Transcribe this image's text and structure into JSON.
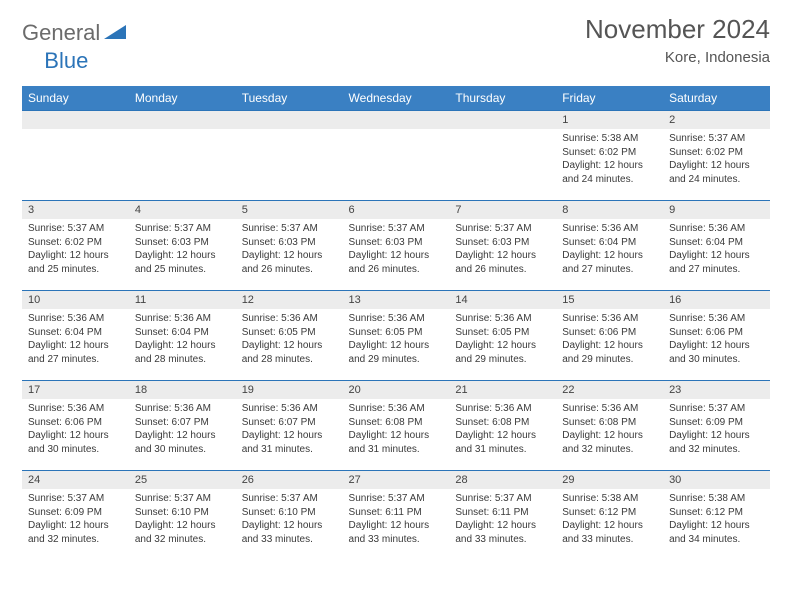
{
  "logo": {
    "text1": "General",
    "text2": "Blue"
  },
  "title": "November 2024",
  "location": "Kore, Indonesia",
  "header_bg": "#3a80c3",
  "daynum_bg": "#ececec",
  "border_color": "#2b74b8",
  "day_names": [
    "Sunday",
    "Monday",
    "Tuesday",
    "Wednesday",
    "Thursday",
    "Friday",
    "Saturday"
  ],
  "weeks": [
    [
      {
        "n": "",
        "sunrise": "",
        "sunset": "",
        "daylight": ""
      },
      {
        "n": "",
        "sunrise": "",
        "sunset": "",
        "daylight": ""
      },
      {
        "n": "",
        "sunrise": "",
        "sunset": "",
        "daylight": ""
      },
      {
        "n": "",
        "sunrise": "",
        "sunset": "",
        "daylight": ""
      },
      {
        "n": "",
        "sunrise": "",
        "sunset": "",
        "daylight": ""
      },
      {
        "n": "1",
        "sunrise": "5:38 AM",
        "sunset": "6:02 PM",
        "daylight": "12 hours and 24 minutes."
      },
      {
        "n": "2",
        "sunrise": "5:37 AM",
        "sunset": "6:02 PM",
        "daylight": "12 hours and 24 minutes."
      }
    ],
    [
      {
        "n": "3",
        "sunrise": "5:37 AM",
        "sunset": "6:02 PM",
        "daylight": "12 hours and 25 minutes."
      },
      {
        "n": "4",
        "sunrise": "5:37 AM",
        "sunset": "6:03 PM",
        "daylight": "12 hours and 25 minutes."
      },
      {
        "n": "5",
        "sunrise": "5:37 AM",
        "sunset": "6:03 PM",
        "daylight": "12 hours and 26 minutes."
      },
      {
        "n": "6",
        "sunrise": "5:37 AM",
        "sunset": "6:03 PM",
        "daylight": "12 hours and 26 minutes."
      },
      {
        "n": "7",
        "sunrise": "5:37 AM",
        "sunset": "6:03 PM",
        "daylight": "12 hours and 26 minutes."
      },
      {
        "n": "8",
        "sunrise": "5:36 AM",
        "sunset": "6:04 PM",
        "daylight": "12 hours and 27 minutes."
      },
      {
        "n": "9",
        "sunrise": "5:36 AM",
        "sunset": "6:04 PM",
        "daylight": "12 hours and 27 minutes."
      }
    ],
    [
      {
        "n": "10",
        "sunrise": "5:36 AM",
        "sunset": "6:04 PM",
        "daylight": "12 hours and 27 minutes."
      },
      {
        "n": "11",
        "sunrise": "5:36 AM",
        "sunset": "6:04 PM",
        "daylight": "12 hours and 28 minutes."
      },
      {
        "n": "12",
        "sunrise": "5:36 AM",
        "sunset": "6:05 PM",
        "daylight": "12 hours and 28 minutes."
      },
      {
        "n": "13",
        "sunrise": "5:36 AM",
        "sunset": "6:05 PM",
        "daylight": "12 hours and 29 minutes."
      },
      {
        "n": "14",
        "sunrise": "5:36 AM",
        "sunset": "6:05 PM",
        "daylight": "12 hours and 29 minutes."
      },
      {
        "n": "15",
        "sunrise": "5:36 AM",
        "sunset": "6:06 PM",
        "daylight": "12 hours and 29 minutes."
      },
      {
        "n": "16",
        "sunrise": "5:36 AM",
        "sunset": "6:06 PM",
        "daylight": "12 hours and 30 minutes."
      }
    ],
    [
      {
        "n": "17",
        "sunrise": "5:36 AM",
        "sunset": "6:06 PM",
        "daylight": "12 hours and 30 minutes."
      },
      {
        "n": "18",
        "sunrise": "5:36 AM",
        "sunset": "6:07 PM",
        "daylight": "12 hours and 30 minutes."
      },
      {
        "n": "19",
        "sunrise": "5:36 AM",
        "sunset": "6:07 PM",
        "daylight": "12 hours and 31 minutes."
      },
      {
        "n": "20",
        "sunrise": "5:36 AM",
        "sunset": "6:08 PM",
        "daylight": "12 hours and 31 minutes."
      },
      {
        "n": "21",
        "sunrise": "5:36 AM",
        "sunset": "6:08 PM",
        "daylight": "12 hours and 31 minutes."
      },
      {
        "n": "22",
        "sunrise": "5:36 AM",
        "sunset": "6:08 PM",
        "daylight": "12 hours and 32 minutes."
      },
      {
        "n": "23",
        "sunrise": "5:37 AM",
        "sunset": "6:09 PM",
        "daylight": "12 hours and 32 minutes."
      }
    ],
    [
      {
        "n": "24",
        "sunrise": "5:37 AM",
        "sunset": "6:09 PM",
        "daylight": "12 hours and 32 minutes."
      },
      {
        "n": "25",
        "sunrise": "5:37 AM",
        "sunset": "6:10 PM",
        "daylight": "12 hours and 32 minutes."
      },
      {
        "n": "26",
        "sunrise": "5:37 AM",
        "sunset": "6:10 PM",
        "daylight": "12 hours and 33 minutes."
      },
      {
        "n": "27",
        "sunrise": "5:37 AM",
        "sunset": "6:11 PM",
        "daylight": "12 hours and 33 minutes."
      },
      {
        "n": "28",
        "sunrise": "5:37 AM",
        "sunset": "6:11 PM",
        "daylight": "12 hours and 33 minutes."
      },
      {
        "n": "29",
        "sunrise": "5:38 AM",
        "sunset": "6:12 PM",
        "daylight": "12 hours and 33 minutes."
      },
      {
        "n": "30",
        "sunrise": "5:38 AM",
        "sunset": "6:12 PM",
        "daylight": "12 hours and 34 minutes."
      }
    ]
  ],
  "labels": {
    "sunrise": "Sunrise:",
    "sunset": "Sunset:",
    "daylight": "Daylight:"
  }
}
